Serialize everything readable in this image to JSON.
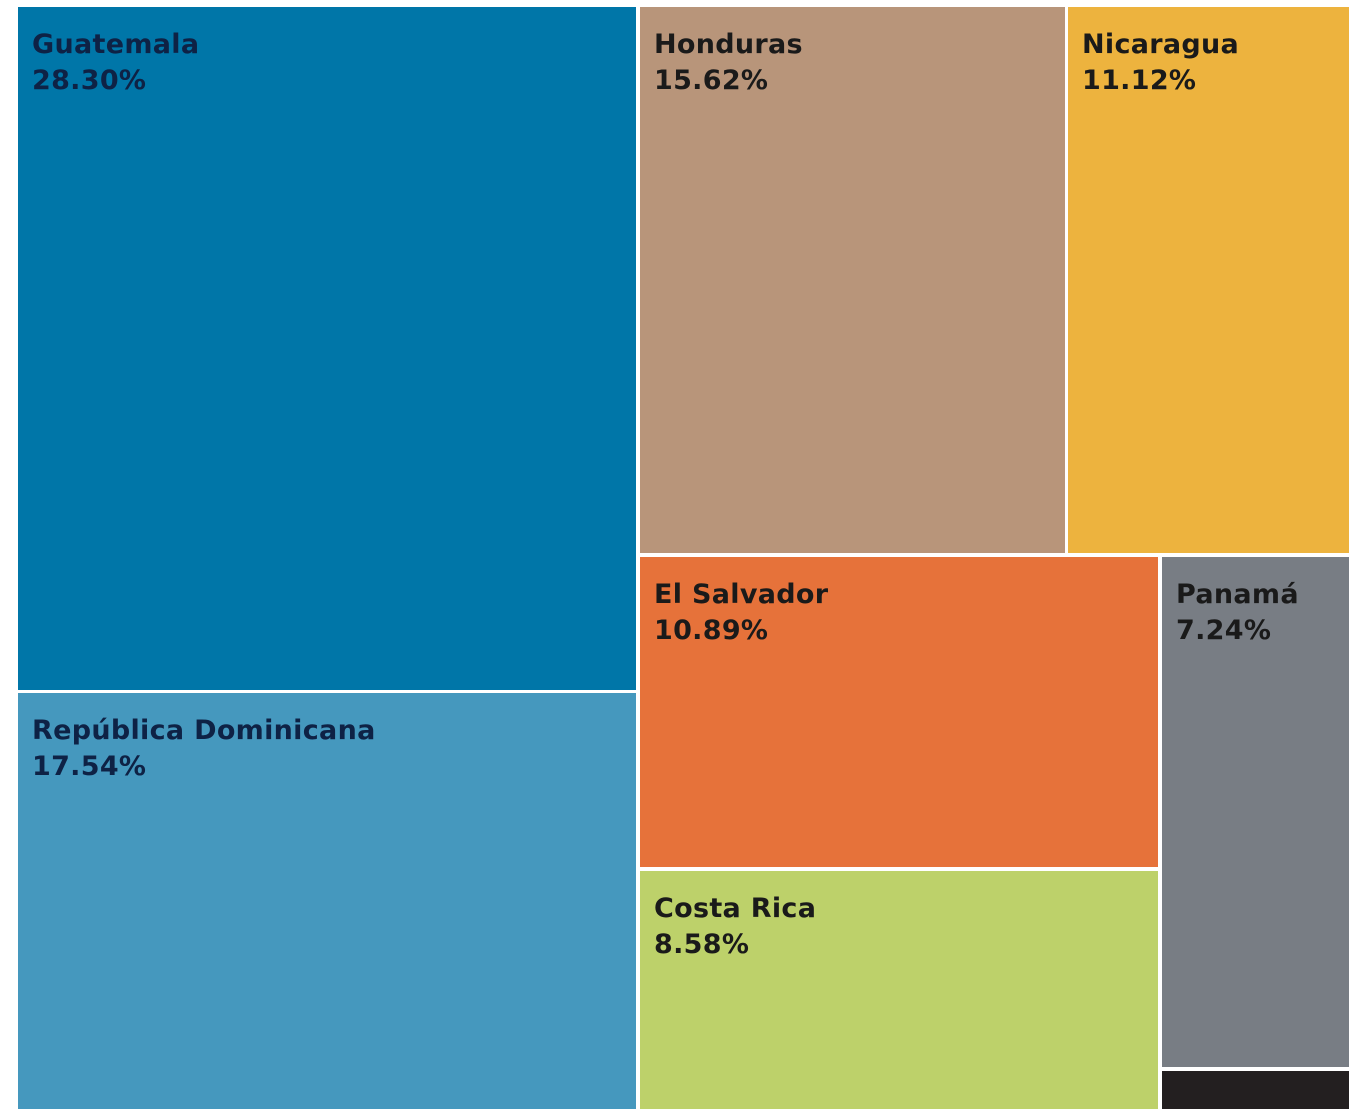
{
  "chart_data": {
    "type": "treemap",
    "title": "",
    "value_format": "{value}%",
    "items": [
      {
        "name": "Guatemala",
        "value": 28.3,
        "color": "#0076A8",
        "text_color": "#0E2245"
      },
      {
        "name": "República Dominicana",
        "value": 17.54,
        "color": "#4598BE",
        "text_color": "#0E2245"
      },
      {
        "name": "Honduras",
        "value": 15.62,
        "color": "#B8957A",
        "text_color": "#1A1A1A"
      },
      {
        "name": "Nicaragua",
        "value": 11.12,
        "color": "#EDB33E",
        "text_color": "#1A1A1A"
      },
      {
        "name": "El Salvador",
        "value": 10.89,
        "color": "#E6723A",
        "text_color": "#1A1A1A"
      },
      {
        "name": "Costa Rica",
        "value": 8.58,
        "color": "#BDD16A",
        "text_color": "#1A1A1A"
      },
      {
        "name": "Panamá",
        "value": 7.24,
        "color": "#787D84",
        "text_color": "#1A1A1A"
      },
      {
        "name": "",
        "value": 0.71,
        "color": "#231F20",
        "text_color": "#FFFFFF"
      }
    ]
  }
}
